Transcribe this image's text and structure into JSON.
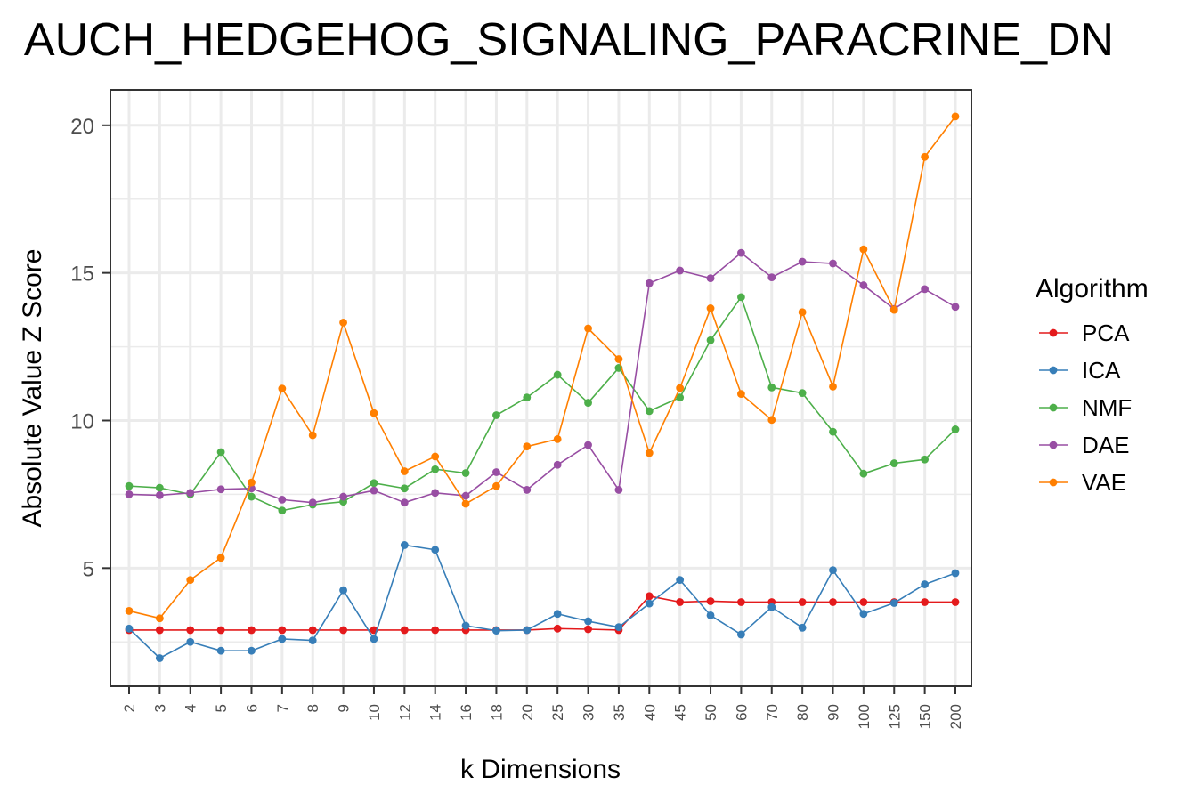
{
  "chart_data": {
    "type": "line",
    "title": "AUCH_HEDGEHOG_SIGNALING_PARACRINE_DN",
    "xlabel": "k Dimensions",
    "ylabel": "Absolute Value Z Score",
    "categories": [
      "2",
      "3",
      "4",
      "5",
      "6",
      "7",
      "8",
      "9",
      "10",
      "12",
      "14",
      "16",
      "18",
      "20",
      "25",
      "30",
      "35",
      "40",
      "45",
      "50",
      "60",
      "70",
      "80",
      "90",
      "100",
      "125",
      "150",
      "200"
    ],
    "y_ticks": [
      5,
      10,
      15,
      20
    ],
    "y_tick_labels": [
      "5",
      "10",
      "15",
      "20"
    ],
    "ylim": [
      1.0,
      21.2
    ],
    "grid": true,
    "legend": {
      "title": "Algorithm",
      "position": "right"
    },
    "series": [
      {
        "name": "PCA",
        "color": "#e41a1c",
        "values": [
          2.9,
          2.9,
          2.9,
          2.9,
          2.9,
          2.9,
          2.9,
          2.9,
          2.9,
          2.9,
          2.9,
          2.9,
          2.9,
          2.9,
          2.95,
          2.93,
          2.9,
          4.05,
          3.85,
          3.88,
          3.85,
          3.85,
          3.85,
          3.85,
          3.85,
          3.85,
          3.85,
          3.85
        ]
      },
      {
        "name": "ICA",
        "color": "#377eb8",
        "values": [
          2.95,
          1.95,
          2.5,
          2.2,
          2.2,
          2.6,
          2.55,
          4.25,
          2.6,
          5.78,
          5.62,
          3.05,
          2.88,
          2.9,
          3.45,
          3.2,
          3.0,
          3.8,
          4.6,
          3.4,
          2.75,
          3.68,
          2.98,
          4.93,
          3.45,
          3.82,
          4.45,
          4.83
        ]
      },
      {
        "name": "NMF",
        "color": "#4daf4a",
        "values": [
          7.78,
          7.72,
          7.5,
          8.93,
          7.42,
          6.95,
          7.15,
          7.25,
          7.88,
          7.7,
          8.35,
          8.22,
          10.18,
          10.78,
          11.55,
          10.6,
          11.78,
          10.32,
          10.78,
          12.72,
          14.18,
          11.12,
          10.93,
          9.62,
          8.2,
          8.55,
          8.68,
          9.7
        ]
      },
      {
        "name": "DAE",
        "color": "#984ea3",
        "values": [
          7.5,
          7.47,
          7.55,
          7.67,
          7.7,
          7.32,
          7.22,
          7.42,
          7.63,
          7.22,
          7.55,
          7.45,
          8.25,
          7.65,
          8.5,
          9.17,
          7.65,
          14.65,
          15.08,
          14.82,
          15.68,
          14.85,
          15.38,
          15.32,
          14.58,
          13.78,
          14.45,
          13.85
        ]
      },
      {
        "name": "VAE",
        "color": "#ff7f00",
        "values": [
          3.55,
          3.3,
          4.6,
          5.35,
          7.9,
          11.08,
          9.5,
          13.32,
          10.25,
          8.28,
          8.78,
          7.18,
          7.78,
          9.12,
          9.37,
          13.12,
          12.08,
          8.9,
          11.1,
          13.8,
          10.9,
          10.02,
          13.67,
          11.15,
          15.8,
          13.75,
          18.93,
          20.3
        ]
      }
    ]
  }
}
